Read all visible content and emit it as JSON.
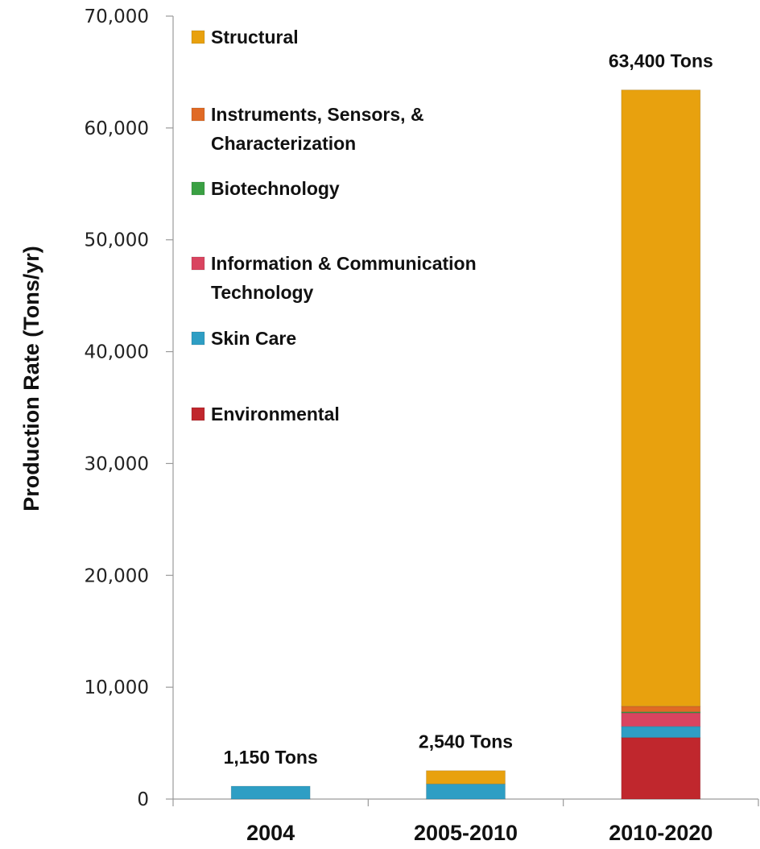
{
  "chart_data": {
    "type": "bar",
    "stacked": true,
    "ylabel": "Production Rate (Tons/yr)",
    "xlabel": "",
    "ylim": [
      0,
      70000
    ],
    "yticks": [
      0,
      10000,
      20000,
      30000,
      40000,
      50000,
      60000,
      70000
    ],
    "ytick_labels": [
      "0",
      "10,000",
      "20,000",
      "30,000",
      "40,000",
      "50,000",
      "60,000",
      "70,000"
    ],
    "grid": false,
    "legend_position": "top-left",
    "categories": [
      "2004",
      "2005-2010",
      "2010-2020"
    ],
    "series": [
      {
        "name": "Environmental",
        "color": "#c0272d",
        "values": [
          0,
          0,
          5500
        ]
      },
      {
        "name": "Skin Care",
        "color": "#2e9ec4",
        "values": [
          1150,
          1350,
          1000
        ]
      },
      {
        "name": "Information & Communication Technology",
        "color": "#d94460",
        "values": [
          0,
          0,
          1200
        ]
      },
      {
        "name": "Biotechnology",
        "color": "#3aa043",
        "values": [
          0,
          0,
          100
        ]
      },
      {
        "name": "Instruments, Sensors, & Characterization",
        "color": "#e06a25",
        "values": [
          0,
          0,
          500
        ]
      },
      {
        "name": "Structural",
        "color": "#e8a10e",
        "values": [
          0,
          1190,
          55100
        ]
      }
    ],
    "legend": [
      {
        "line1": "Structural",
        "line2": "",
        "color": "#e8a10e"
      },
      {
        "line1": "Instruments, Sensors, &",
        "line2": "Characterization",
        "color": "#e06a25"
      },
      {
        "line1": "Biotechnology",
        "line2": "",
        "color": "#3aa043"
      },
      {
        "line1": "Information & Communication",
        "line2": "Technology",
        "color": "#d94460"
      },
      {
        "line1": "Skin Care",
        "line2": "",
        "color": "#2e9ec4"
      },
      {
        "line1": "Environmental",
        "line2": "",
        "color": "#c0272d"
      }
    ],
    "totals": [
      "1,150 Tons",
      "2,540 Tons",
      "63,400 Tons"
    ]
  }
}
